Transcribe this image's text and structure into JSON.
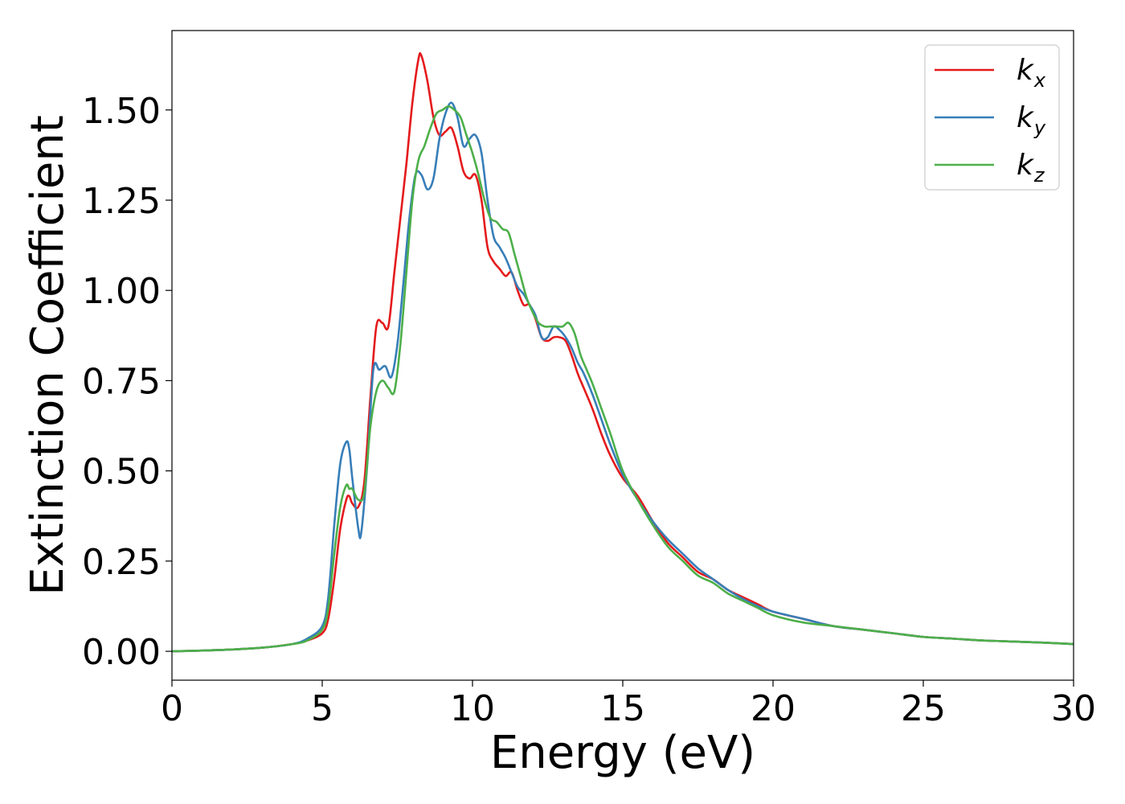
{
  "chart_data": {
    "type": "line",
    "title": "",
    "xlabel": "Energy (eV)",
    "ylabel": "Extinction Coefficient",
    "xlim": [
      0,
      30
    ],
    "ylim": [
      -0.08,
      1.72
    ],
    "xticks": [
      0,
      5,
      10,
      15,
      20,
      25,
      30
    ],
    "xtick_labels": [
      "0",
      "5",
      "10",
      "15",
      "20",
      "25",
      "30"
    ],
    "yticks": [
      0.0,
      0.25,
      0.5,
      0.75,
      1.0,
      1.25,
      1.5
    ],
    "ytick_labels": [
      "0.00",
      "0.25",
      "0.50",
      "0.75",
      "1.00",
      "1.25",
      "1.50"
    ],
    "grid": false,
    "legend_position": "top-right",
    "series": [
      {
        "name": "k_x",
        "legend_base": "k",
        "legend_sub": "x",
        "color": "#e41a1c",
        "x": [
          0,
          1,
          2,
          3,
          4,
          4.5,
          5,
          5.2,
          5.4,
          5.6,
          5.8,
          5.9,
          6.0,
          6.2,
          6.4,
          6.6,
          6.8,
          7.0,
          7.2,
          7.4,
          7.6,
          7.8,
          8.0,
          8.2,
          8.3,
          8.5,
          8.7,
          8.9,
          9.1,
          9.3,
          9.5,
          9.7,
          9.9,
          10.1,
          10.3,
          10.5,
          10.7,
          10.9,
          11.1,
          11.3,
          11.5,
          11.7,
          11.9,
          12.1,
          12.3,
          12.5,
          12.7,
          12.9,
          13.1,
          13.3,
          13.5,
          13.7,
          14.0,
          14.3,
          14.6,
          15.0,
          15.5,
          16.0,
          16.5,
          17.0,
          17.5,
          18.0,
          18.5,
          19.0,
          19.5,
          20.0,
          21.0,
          22.0,
          23.0,
          24.0,
          25.0,
          26.0,
          27.0,
          28.0,
          29.0,
          30.0
        ],
        "y": [
          0.0,
          0.002,
          0.005,
          0.01,
          0.02,
          0.03,
          0.05,
          0.09,
          0.2,
          0.34,
          0.42,
          0.43,
          0.41,
          0.4,
          0.47,
          0.7,
          0.9,
          0.91,
          0.9,
          1.05,
          1.2,
          1.35,
          1.52,
          1.64,
          1.65,
          1.58,
          1.48,
          1.43,
          1.44,
          1.45,
          1.4,
          1.33,
          1.31,
          1.32,
          1.25,
          1.12,
          1.08,
          1.06,
          1.04,
          1.05,
          1.0,
          0.96,
          0.96,
          0.92,
          0.87,
          0.86,
          0.87,
          0.87,
          0.86,
          0.82,
          0.77,
          0.73,
          0.67,
          0.6,
          0.54,
          0.48,
          0.43,
          0.36,
          0.3,
          0.26,
          0.22,
          0.2,
          0.17,
          0.15,
          0.13,
          0.11,
          0.09,
          0.07,
          0.06,
          0.05,
          0.04,
          0.035,
          0.03,
          0.027,
          0.024,
          0.02
        ]
      },
      {
        "name": "k_y",
        "legend_base": "k",
        "legend_sub": "y",
        "color": "#377eb8",
        "x": [
          0,
          1,
          2,
          3,
          4,
          4.5,
          5,
          5.2,
          5.4,
          5.6,
          5.8,
          5.9,
          6.0,
          6.2,
          6.3,
          6.5,
          6.7,
          6.9,
          7.1,
          7.3,
          7.5,
          7.7,
          7.9,
          8.1,
          8.3,
          8.5,
          8.7,
          8.9,
          9.1,
          9.3,
          9.5,
          9.7,
          9.9,
          10.1,
          10.3,
          10.5,
          10.7,
          10.9,
          11.1,
          11.3,
          11.5,
          11.7,
          11.9,
          12.1,
          12.3,
          12.5,
          12.7,
          12.9,
          13.1,
          13.3,
          13.5,
          13.7,
          14.0,
          14.3,
          14.6,
          15.0,
          15.5,
          16.0,
          16.5,
          17.0,
          17.5,
          18.0,
          18.5,
          19.0,
          19.5,
          20.0,
          21.0,
          22.0,
          23.0,
          24.0,
          25.0,
          26.0,
          27.0,
          28.0,
          29.0,
          30.0
        ],
        "y": [
          0.0,
          0.002,
          0.005,
          0.01,
          0.02,
          0.035,
          0.07,
          0.15,
          0.35,
          0.52,
          0.58,
          0.56,
          0.48,
          0.34,
          0.33,
          0.52,
          0.78,
          0.78,
          0.79,
          0.76,
          0.85,
          1.02,
          1.2,
          1.32,
          1.32,
          1.28,
          1.31,
          1.42,
          1.49,
          1.52,
          1.48,
          1.4,
          1.42,
          1.43,
          1.38,
          1.25,
          1.15,
          1.12,
          1.09,
          1.05,
          1.01,
          0.99,
          0.96,
          0.93,
          0.87,
          0.87,
          0.9,
          0.89,
          0.87,
          0.84,
          0.8,
          0.77,
          0.71,
          0.64,
          0.57,
          0.49,
          0.42,
          0.36,
          0.31,
          0.27,
          0.23,
          0.2,
          0.17,
          0.145,
          0.125,
          0.11,
          0.09,
          0.07,
          0.06,
          0.05,
          0.04,
          0.035,
          0.03,
          0.027,
          0.024,
          0.02
        ]
      },
      {
        "name": "k_z",
        "legend_base": "k",
        "legend_sub": "z",
        "color": "#4daf4a",
        "x": [
          0,
          1,
          2,
          3,
          4,
          4.5,
          5,
          5.2,
          5.4,
          5.6,
          5.8,
          5.9,
          6.0,
          6.2,
          6.4,
          6.6,
          6.8,
          7.0,
          7.2,
          7.4,
          7.6,
          7.8,
          8.0,
          8.2,
          8.4,
          8.6,
          8.8,
          9.0,
          9.2,
          9.4,
          9.6,
          9.8,
          10.0,
          10.2,
          10.4,
          10.6,
          10.8,
          11.0,
          11.2,
          11.4,
          11.6,
          11.8,
          12.0,
          12.2,
          12.4,
          12.6,
          12.8,
          13.0,
          13.2,
          13.4,
          13.6,
          13.8,
          14.0,
          14.3,
          14.6,
          15.0,
          15.5,
          16.0,
          16.5,
          17.0,
          17.5,
          18.0,
          18.5,
          19.0,
          19.5,
          20.0,
          21.0,
          22.0,
          23.0,
          24.0,
          25.0,
          26.0,
          27.0,
          28.0,
          29.0,
          30.0
        ],
        "y": [
          0.0,
          0.002,
          0.005,
          0.01,
          0.02,
          0.03,
          0.06,
          0.12,
          0.27,
          0.4,
          0.46,
          0.45,
          0.45,
          0.42,
          0.44,
          0.62,
          0.72,
          0.75,
          0.73,
          0.72,
          0.85,
          1.05,
          1.25,
          1.36,
          1.4,
          1.45,
          1.49,
          1.5,
          1.51,
          1.5,
          1.48,
          1.43,
          1.38,
          1.32,
          1.25,
          1.2,
          1.19,
          1.17,
          1.16,
          1.1,
          1.04,
          0.98,
          0.94,
          0.91,
          0.9,
          0.9,
          0.9,
          0.9,
          0.91,
          0.88,
          0.82,
          0.78,
          0.74,
          0.67,
          0.6,
          0.5,
          0.42,
          0.35,
          0.29,
          0.25,
          0.21,
          0.19,
          0.16,
          0.14,
          0.12,
          0.1,
          0.08,
          0.07,
          0.06,
          0.05,
          0.04,
          0.035,
          0.03,
          0.027,
          0.024,
          0.02
        ]
      }
    ]
  }
}
